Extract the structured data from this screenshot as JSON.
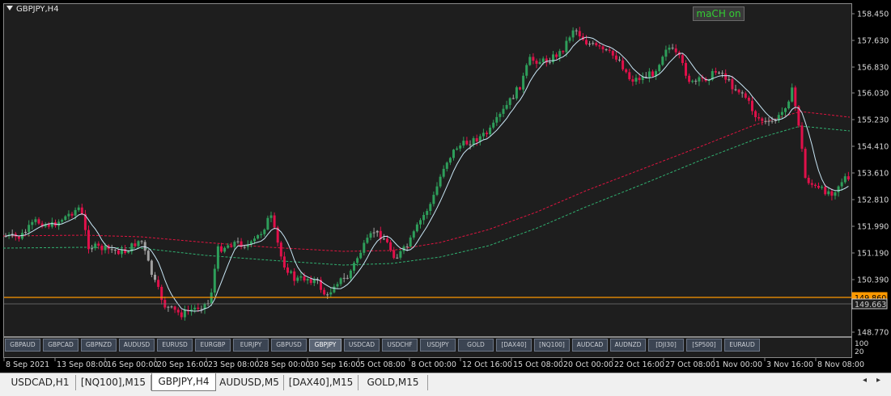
{
  "chart": {
    "symbol_title": "GBPJPY,H4",
    "indicator_button": "maCH on",
    "price_labels": [
      "158.450",
      "157.630",
      "156.830",
      "156.030",
      "155.230",
      "154.410",
      "153.610",
      "152.810",
      "151.990",
      "151.190",
      "150.390",
      "148.770"
    ],
    "level_labels": [
      {
        "text": "149.860",
        "color": "#ff9900"
      },
      {
        "text": "149.663",
        "color": "#cccccc"
      }
    ],
    "volume_labels": [
      "100",
      "20"
    ],
    "time_labels": [
      "8 Sep 2021",
      "13 Sep 08:00",
      "16 Sep 00:00",
      "20 Sep 16:00",
      "23 Sep 08:00",
      "28 Sep 00:00",
      "30 Sep 16:00",
      "5 Oct 08:00",
      "8 Oct 00:00",
      "12 Oct 16:00",
      "15 Oct 08:00",
      "20 Oct 00:00",
      "22 Oct 16:00",
      "27 Oct 08:00",
      "1 Nov 00:00",
      "3 Nov 16:00",
      "8 Nov 08:00"
    ],
    "colors": {
      "bull": "#2e9e5a",
      "bear": "#e0104a",
      "neutral": "#a0a0a0",
      "fast_ma": "#c8e6f5",
      "slow_ma_upper": "#e01440",
      "slow_ma_lower": "#30b070",
      "level_line": "#ff9900"
    }
  },
  "symbol_buttons": [
    {
      "label": "GBPAUD",
      "active": false
    },
    {
      "label": "GBPCAD",
      "active": false
    },
    {
      "label": "GBPNZD",
      "active": false
    },
    {
      "label": "AUDUSD",
      "active": false
    },
    {
      "label": "EURUSD",
      "active": false
    },
    {
      "label": "EURGBP",
      "active": false
    },
    {
      "label": "EURJPY",
      "active": false
    },
    {
      "label": "GBPUSD",
      "active": false
    },
    {
      "label": "GBPJPY",
      "active": true
    },
    {
      "label": "USDCAD",
      "active": false
    },
    {
      "label": "USDCHF",
      "active": false
    },
    {
      "label": "USDJPY",
      "active": false
    },
    {
      "label": "GOLD",
      "active": false
    },
    {
      "label": "[DAX40]",
      "active": false
    },
    {
      "label": "[NQ100]",
      "active": false
    },
    {
      "label": "AUDCAD",
      "active": false
    },
    {
      "label": "AUDNZD",
      "active": false
    },
    {
      "label": "[DJI30]",
      "active": false
    },
    {
      "label": "[SP500]",
      "active": false
    },
    {
      "label": "EURAUD",
      "active": false
    }
  ],
  "tabs": [
    {
      "label": "USDCAD,H1",
      "active": false
    },
    {
      "label": "[NQ100],M15",
      "active": false
    },
    {
      "label": "GBPJPY,H4",
      "active": true
    },
    {
      "label": "AUDUSD,M5",
      "active": false
    },
    {
      "label": "[DAX40],M15",
      "active": false
    },
    {
      "label": "GOLD,M15",
      "active": false
    }
  ]
}
